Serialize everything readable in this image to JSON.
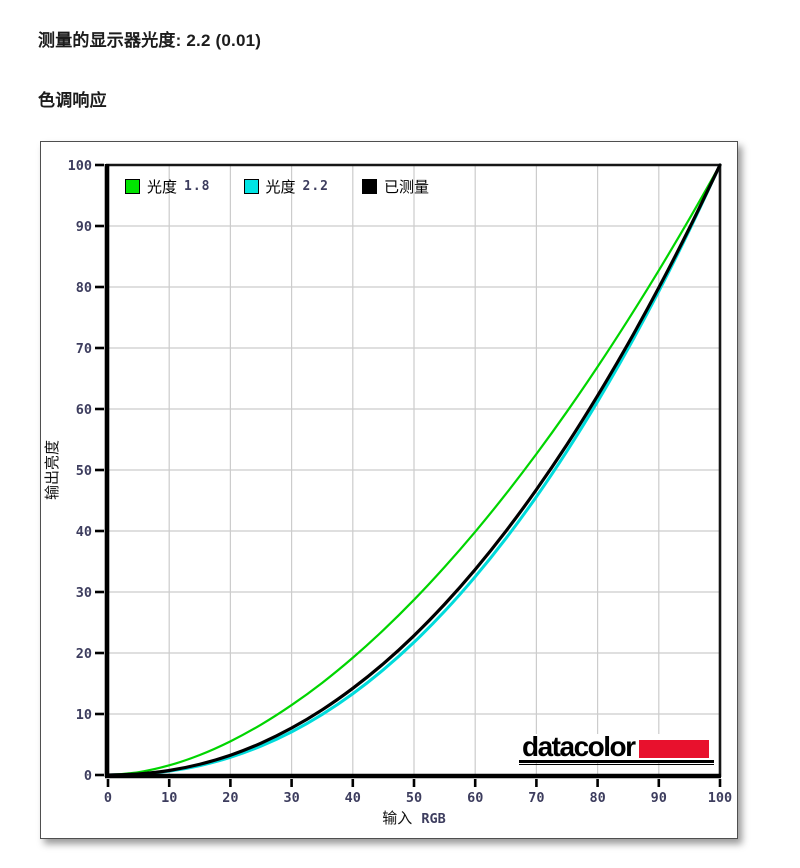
{
  "header": {
    "measured_gamma_line": "测量的显示器光度: 2.2 (0.01)",
    "section_title": "色调响应"
  },
  "chart_data": {
    "type": "line",
    "title": "",
    "xlabel": "输入 RGB",
    "ylabel": "输出亮度",
    "xlim": [
      0,
      100
    ],
    "ylim": [
      0,
      100
    ],
    "grid": true,
    "legend_position": "top-left-inside",
    "xticks": [
      0,
      10,
      20,
      30,
      40,
      50,
      60,
      70,
      80,
      90,
      100
    ],
    "yticks": [
      0,
      10,
      20,
      30,
      40,
      50,
      60,
      70,
      80,
      90,
      100
    ],
    "x": [
      0,
      5,
      10,
      15,
      20,
      25,
      30,
      35,
      40,
      45,
      50,
      55,
      60,
      65,
      70,
      75,
      80,
      85,
      90,
      95,
      100
    ],
    "series": [
      {
        "name": "光度 1.8",
        "color": "#00d500",
        "width": 2.2,
        "values": [
          0,
          0.46,
          1.58,
          3.28,
          5.52,
          8.25,
          11.46,
          15.11,
          19.22,
          23.76,
          28.72,
          34.1,
          39.87,
          46.05,
          52.62,
          59.58,
          66.92,
          74.64,
          82.72,
          91.18,
          100
        ]
      },
      {
        "name": "光度 2.2",
        "color": "#00dbdb",
        "width": 3,
        "values": [
          0,
          0.14,
          0.63,
          1.54,
          2.9,
          4.74,
          7.07,
          9.93,
          13.32,
          17.26,
          21.76,
          26.84,
          32.51,
          38.76,
          45.62,
          53.11,
          61.22,
          69.94,
          79.3,
          89.32,
          100
        ]
      },
      {
        "name": "已测量",
        "color": "#000000",
        "width": 3.2,
        "values": [
          0,
          0.17,
          0.74,
          1.76,
          3.24,
          5.22,
          7.7,
          10.69,
          14.21,
          18.25,
          22.84,
          27.99,
          33.69,
          39.95,
          46.78,
          54.18,
          62.18,
          70.74,
          79.89,
          89.65,
          100
        ]
      }
    ],
    "legend": [
      {
        "label": "光度",
        "value": "1.8",
        "swatch": "#00e400"
      },
      {
        "label": "光度",
        "value": "2.2",
        "swatch": "#00e4e4"
      },
      {
        "label": "已测量",
        "value": "",
        "swatch": "#000000"
      }
    ],
    "colors": {
      "grid": "#cccccc",
      "axis": "#000000",
      "tick_label": "#3d3d5e",
      "axis_title": "#111111"
    }
  },
  "logo": {
    "text": "datacolor",
    "bar_color": "#e8112d"
  }
}
